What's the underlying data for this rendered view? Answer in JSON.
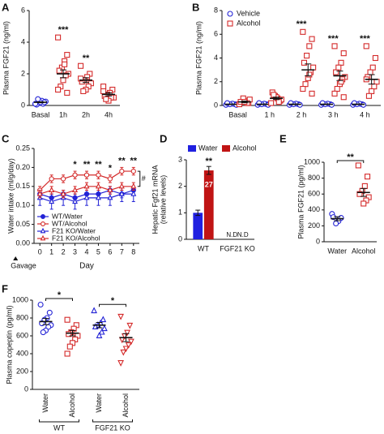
{
  "chart_data": [
    {
      "type": "dot",
      "label": "A",
      "ylabel": "Plasma FGF21 (ng/ml)",
      "categories": [
        "Basal",
        "1h",
        "2h",
        "4h"
      ],
      "series": [
        {
          "color": "#2323d6",
          "marker": "circle",
          "filled": false,
          "points": [
            [
              0.1,
              0.2,
              0.3,
              0.15,
              0.05,
              0.25,
              0.1,
              0.2,
              0.4,
              0.1,
              0.2
            ],
            null,
            null,
            null
          ],
          "mean": [
            0.2,
            null,
            null,
            null
          ],
          "sem": [
            0.03,
            null,
            null,
            null
          ]
        },
        {
          "color": "#d42a2a",
          "marker": "square",
          "filled": false,
          "points": [
            null,
            [
              4.3,
              3.2,
              2.8,
              2.4,
              2.2,
              2.0,
              1.9,
              1.6,
              1.2,
              1.0,
              0.8,
              2.6
            ],
            [
              2.5,
              2.0,
              1.8,
              1.6,
              1.5,
              1.4,
              1.2,
              1.0,
              0.9,
              1.7
            ],
            [
              1.2,
              1.0,
              0.8,
              0.7,
              0.6,
              0.5,
              0.5,
              0.3,
              0.4,
              0.9
            ]
          ],
          "mean": [
            null,
            2.0,
            1.6,
            0.7
          ],
          "sem": [
            null,
            0.25,
            0.15,
            0.1
          ]
        }
      ],
      "ylim": [
        0,
        6
      ],
      "yticks": [
        0,
        2,
        4,
        6
      ],
      "annotations": [
        {
          "category": 1,
          "text": "***"
        },
        {
          "category": 2,
          "text": "**"
        }
      ]
    },
    {
      "type": "dot",
      "label": "B",
      "ylabel": "Plasma FGF21 (ng/ml)",
      "categories": [
        "Basal",
        "1 h",
        "2 h",
        "3 h",
        "4 h"
      ],
      "series": [
        {
          "name": "Vehicle",
          "color": "#2323d6",
          "marker": "circle",
          "filled": false,
          "points": [
            [
              0.05,
              0.1,
              0.15,
              0.1,
              0.2,
              0.05
            ],
            [
              0.05,
              0.1,
              0.15,
              0.1,
              0.2,
              0.05
            ],
            [
              0.05,
              0.1,
              0.15,
              0.1,
              0.2,
              0.05
            ],
            [
              0.05,
              0.1,
              0.15,
              0.1,
              0.2,
              0.05
            ],
            [
              0.05,
              0.1,
              0.15,
              0.1,
              0.2,
              0.05
            ]
          ],
          "mean": [
            0.1,
            0.1,
            0.1,
            0.1,
            0.1
          ],
          "sem": [
            0.02,
            0.02,
            0.02,
            0.02,
            0.02
          ]
        },
        {
          "name": "Alcohol",
          "color": "#d42a2a",
          "marker": "square",
          "filled": false,
          "points": [
            [
              0.1,
              0.2,
              0.4,
              0.6,
              0.3,
              0.5,
              0.2,
              0.3
            ],
            [
              0.2,
              0.4,
              0.6,
              0.8,
              1.1,
              0.5,
              0.3,
              0.7,
              0.9
            ],
            [
              6.2,
              5.6,
              5.0,
              4.2,
              3.6,
              3.2,
              2.8,
              2.3,
              1.8,
              1.4,
              1.0,
              2.6
            ],
            [
              5.0,
              4.4,
              3.6,
              3.2,
              2.8,
              2.4,
              2.2,
              1.8,
              1.4,
              1.0,
              0.7,
              2.0
            ],
            [
              5.0,
              4.0,
              3.2,
              2.8,
              2.4,
              2.0,
              1.6,
              1.2,
              0.8,
              2.2
            ]
          ],
          "mean": [
            0.3,
            0.6,
            3.0,
            2.5,
            2.2
          ],
          "sem": [
            0.07,
            0.1,
            0.5,
            0.4,
            0.4
          ]
        }
      ],
      "ylim": [
        0,
        8
      ],
      "yticks": [
        0,
        2,
        4,
        6,
        8
      ],
      "annotations": [
        {
          "category": 2,
          "text": "***"
        },
        {
          "category": 3,
          "text": "***"
        },
        {
          "category": 4,
          "text": "***"
        }
      ]
    },
    {
      "type": "line",
      "label": "C",
      "ylabel": "Water intake (ml/g/day)",
      "xlabel": "Day",
      "x": [
        0,
        1,
        2,
        3,
        4,
        5,
        6,
        7,
        8
      ],
      "series": [
        {
          "name": "WT/Water",
          "color": "#2323d6",
          "marker": "circle",
          "filled": true,
          "values": [
            0.13,
            0.12,
            0.13,
            0.12,
            0.13,
            0.13,
            0.14,
            0.13,
            0.14
          ],
          "errors": [
            0.01,
            0.01,
            0.01,
            0.01,
            0.01,
            0.01,
            0.01,
            0.01,
            0.01
          ]
        },
        {
          "name": "WT/Alcohol",
          "color": "#d42a2a",
          "marker": "circle",
          "filled": false,
          "values": [
            0.14,
            0.17,
            0.17,
            0.18,
            0.18,
            0.18,
            0.17,
            0.19,
            0.19
          ],
          "errors": [
            0.01,
            0.01,
            0.01,
            0.01,
            0.01,
            0.01,
            0.01,
            0.01,
            0.01
          ]
        },
        {
          "name": "F21 KO/Water",
          "color": "#2323d6",
          "marker": "triangle",
          "filled": false,
          "values": [
            0.12,
            0.11,
            0.12,
            0.11,
            0.12,
            0.12,
            0.12,
            0.13,
            0.13
          ],
          "errors": [
            0.02,
            0.02,
            0.02,
            0.02,
            0.02,
            0.02,
            0.02,
            0.02,
            0.02
          ]
        },
        {
          "name": "F21 KO/Alcohol",
          "color": "#d42a2a",
          "marker": "triangle",
          "filled": false,
          "values": [
            0.13,
            0.14,
            0.13,
            0.14,
            0.15,
            0.15,
            0.14,
            0.15,
            0.15
          ],
          "errors": [
            0.01,
            0.01,
            0.01,
            0.01,
            0.01,
            0.01,
            0.01,
            0.01,
            0.01
          ]
        }
      ],
      "xlim": [
        -0.5,
        8.5
      ],
      "xticks": [
        0,
        1,
        2,
        3,
        4,
        5,
        6,
        7,
        8
      ],
      "ylim": [
        0,
        0.25
      ],
      "yticks": [
        {
          "value": 0,
          "label": "0.00"
        },
        {
          "value": 0.05,
          "label": "0.05"
        },
        {
          "value": 0.1,
          "label": "0.10"
        },
        {
          "value": 0.15,
          "label": "0.15"
        },
        {
          "value": 0.2,
          "label": "0.20"
        },
        {
          "value": 0.25,
          "label": "0.25"
        }
      ],
      "legend": "lower left",
      "annotations": [
        {
          "x": 3,
          "text": "*"
        },
        {
          "x": 4,
          "text": "**"
        },
        {
          "x": 5,
          "text": "**"
        },
        {
          "x": 6,
          "text": "*"
        },
        {
          "x": 7,
          "text": "**"
        },
        {
          "x": 8,
          "text": "**"
        }
      ],
      "bracket": {
        "text": "#",
        "series": [
          1,
          3
        ]
      },
      "gavage": {
        "x": 0,
        "text": "Gavage"
      }
    },
    {
      "type": "bar",
      "label": "D",
      "ylabel": [
        "Hepatic Fgf21 mRNA",
        "(relative levels)"
      ],
      "categories": [
        "WT",
        "FGF21 KO"
      ],
      "series": [
        {
          "name": "Water",
          "color": "#2020e0",
          "values": [
            1.0,
            null
          ],
          "errors": [
            0.1,
            null
          ],
          "value_labels": [
            null,
            "N.D"
          ]
        },
        {
          "name": "Alcohol",
          "color": "#c01414",
          "values": [
            2.6,
            null
          ],
          "errors": [
            0.15,
            null
          ],
          "value_labels": [
            null,
            "N.D"
          ]
        }
      ],
      "ylim": [
        0,
        3
      ],
      "yticks": [
        0,
        1,
        2,
        3
      ],
      "annotations": [
        {
          "category": 0,
          "series": 1,
          "text": "**",
          "place": "above"
        },
        {
          "category": 0,
          "series": 1,
          "text": "27",
          "place": "inside"
        }
      ]
    },
    {
      "type": "dot",
      "label": "E",
      "ylabel": "Plasma FGF21 (pg/ml)",
      "categories": [
        "Water",
        "Alcohol"
      ],
      "series": [
        {
          "color": "#2323d6",
          "marker": "circle",
          "filled": false,
          "points": [
            [
              350,
              300,
              260,
              230,
              310
            ],
            null
          ],
          "mean": [
            290,
            null
          ],
          "sem": [
            25,
            null
          ]
        },
        {
          "color": "#d42a2a",
          "marker": "square",
          "filled": false,
          "points": [
            null,
            [
              960,
              820,
              700,
              640,
              600,
              560,
              520,
              480
            ]
          ],
          "mean": [
            null,
            620
          ],
          "sem": [
            null,
            50
          ]
        }
      ],
      "ylim": [
        0,
        1000
      ],
      "yticks": [
        0,
        200,
        400,
        600,
        800,
        1000
      ],
      "annotations": [
        {
          "from": 0,
          "to": 1,
          "text": "**"
        }
      ]
    },
    {
      "type": "dot",
      "label": "F",
      "ylabel": "Plasma copeptin (pg/ml)",
      "categories": [
        "Water",
        "Alcohol",
        "Water",
        "Alcohol"
      ],
      "rotate_categories": true,
      "series": [
        {
          "color": "#2323d6",
          "marker": "circle",
          "filled": false,
          "points": [
            [
              950,
              860,
              800,
              780,
              740,
              720,
              700,
              660,
              640
            ],
            null,
            null,
            null
          ],
          "mean": [
            760,
            null,
            null,
            null
          ],
          "sem": [
            35,
            null,
            null,
            null
          ]
        },
        {
          "color": "#d42a2a",
          "marker": "square",
          "filled": false,
          "points": [
            null,
            [
              780,
              720,
              680,
              640,
              620,
              600,
              560,
              520,
              480,
              400
            ],
            null,
            null
          ],
          "mean": [
            null,
            630,
            null,
            null
          ],
          "sem": [
            null,
            30,
            null,
            null
          ]
        },
        {
          "color": "#2323d6",
          "marker": "triangle",
          "filled": false,
          "points": [
            null,
            null,
            [
              880,
              780,
              740,
              720,
              700,
              680,
              640,
              600
            ],
            null
          ],
          "mean": [
            null,
            null,
            720,
            null
          ],
          "sem": [
            null,
            null,
            30,
            null
          ]
        },
        {
          "color": "#d42a2a",
          "marker": "triangle-down",
          "filled": false,
          "points": [
            null,
            null,
            null,
            [
              820,
              720,
              640,
              600,
              560,
              540,
              500,
              460,
              420,
              300
            ]
          ],
          "mean": [
            null,
            null,
            null,
            580
          ],
          "sem": [
            null,
            null,
            null,
            45
          ]
        }
      ],
      "ylim": [
        0,
        1000
      ],
      "yticks": [
        0,
        200,
        400,
        600,
        800,
        1000
      ],
      "annotations": [
        {
          "from": 0,
          "to": 1,
          "text": "*"
        },
        {
          "from": 2,
          "to": 3,
          "text": "*"
        }
      ],
      "groups": [
        {
          "name": "WT",
          "categories": [
            0,
            1
          ]
        },
        {
          "name": "FGF21 KO",
          "categories": [
            2,
            3
          ]
        }
      ]
    }
  ]
}
